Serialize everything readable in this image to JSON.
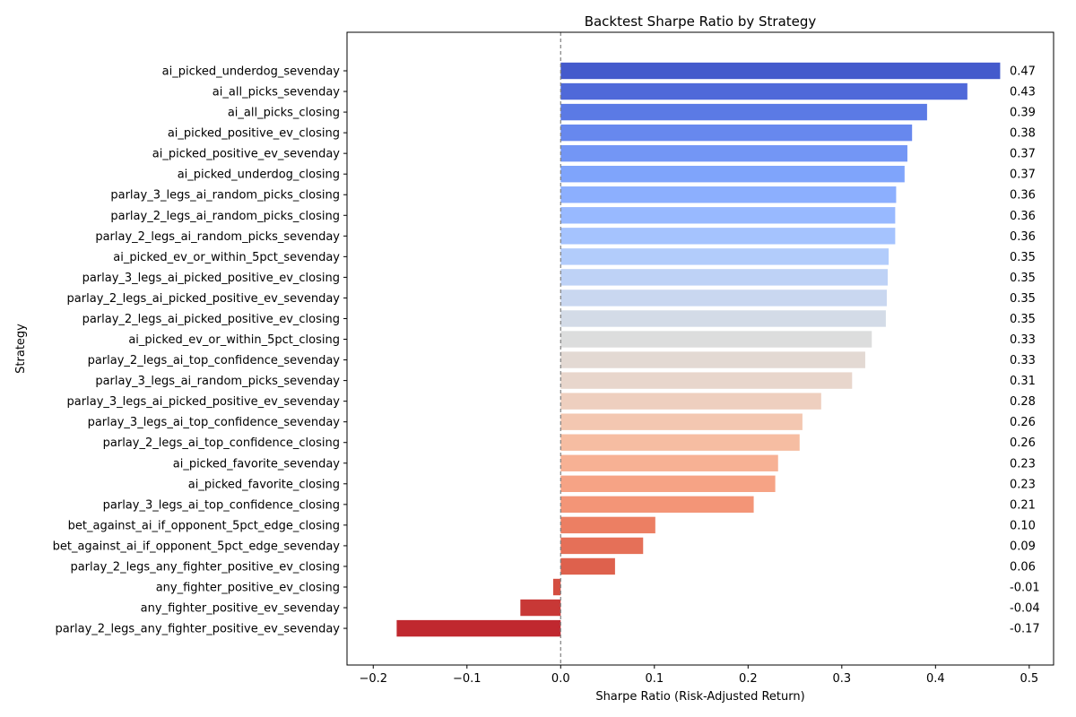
{
  "chart_data": {
    "type": "bar",
    "orientation": "horizontal",
    "title": "Backtest Sharpe Ratio by Strategy",
    "xlabel": "Sharpe Ratio (Risk-Adjusted Return)",
    "ylabel": "Strategy",
    "xlim": [
      -0.228,
      0.526
    ],
    "xticks": [
      -0.2,
      -0.1,
      0.0,
      0.1,
      0.2,
      0.3,
      0.4,
      0.5
    ],
    "xtick_labels": [
      "−0.2",
      "−0.1",
      "0.0",
      "0.1",
      "0.2",
      "0.3",
      "0.4",
      "0.5"
    ],
    "grid": false,
    "reference_line": {
      "x": 0,
      "style": "dashed",
      "color": "#808080"
    },
    "colormap": "coolwarm",
    "categories": [
      "ai_picked_underdog_sevenday",
      "ai_all_picks_sevenday",
      "ai_all_picks_closing",
      "ai_picked_positive_ev_closing",
      "ai_picked_positive_ev_sevenday",
      "ai_picked_underdog_closing",
      "parlay_3_legs_ai_random_picks_closing",
      "parlay_2_legs_ai_random_picks_closing",
      "parlay_2_legs_ai_random_picks_sevenday",
      "ai_picked_ev_or_within_5pct_sevenday",
      "parlay_3_legs_ai_picked_positive_ev_closing",
      "parlay_2_legs_ai_picked_positive_ev_sevenday",
      "parlay_2_legs_ai_picked_positive_ev_closing",
      "ai_picked_ev_or_within_5pct_closing",
      "parlay_2_legs_ai_top_confidence_sevenday",
      "parlay_3_legs_ai_random_picks_sevenday",
      "parlay_3_legs_ai_picked_positive_ev_sevenday",
      "parlay_3_legs_ai_top_confidence_sevenday",
      "parlay_2_legs_ai_top_confidence_closing",
      "ai_picked_favorite_sevenday",
      "ai_picked_favorite_closing",
      "parlay_3_legs_ai_top_confidence_closing",
      "bet_against_ai_if_opponent_5pct_edge_closing",
      "bet_against_ai_if_opponent_5pct_edge_sevenday",
      "parlay_2_legs_any_fighter_positive_ev_closing",
      "any_fighter_positive_ev_closing",
      "any_fighter_positive_ev_sevenday",
      "parlay_2_legs_any_fighter_positive_ev_sevenday"
    ],
    "values": [
      0.469,
      0.434,
      0.391,
      0.375,
      0.37,
      0.367,
      0.358,
      0.357,
      0.357,
      0.35,
      0.349,
      0.348,
      0.347,
      0.332,
      0.325,
      0.311,
      0.278,
      0.258,
      0.255,
      0.232,
      0.229,
      0.206,
      0.101,
      0.088,
      0.058,
      -0.008,
      -0.043,
      -0.175
    ],
    "value_labels": [
      "0.47",
      "0.43",
      "0.39",
      "0.38",
      "0.37",
      "0.37",
      "0.36",
      "0.36",
      "0.36",
      "0.35",
      "0.35",
      "0.35",
      "0.35",
      "0.33",
      "0.33",
      "0.31",
      "0.28",
      "0.26",
      "0.26",
      "0.23",
      "0.23",
      "0.21",
      "0.10",
      "0.09",
      "0.06",
      "-0.01",
      "-0.04",
      "-0.17"
    ],
    "colors": [
      "#445acc",
      "#4f69d9",
      "#5b7ae5",
      "#6788ee",
      "#7396f5",
      "#7fa4fb",
      "#8caffe",
      "#98b9ff",
      "#a5c3fe",
      "#b2ccfb",
      "#bed2f6",
      "#c9d7f0",
      "#d3dbe7",
      "#dcdddd",
      "#e3d9d3",
      "#e8d6cc",
      "#eecfbf",
      "#f3c7b1",
      "#f6bda2",
      "#f7b194",
      "#f6a385",
      "#f39577",
      "#ec7f63",
      "#e57058",
      "#de614d",
      "#d44e41",
      "#c83836",
      "#c0282f"
    ]
  }
}
